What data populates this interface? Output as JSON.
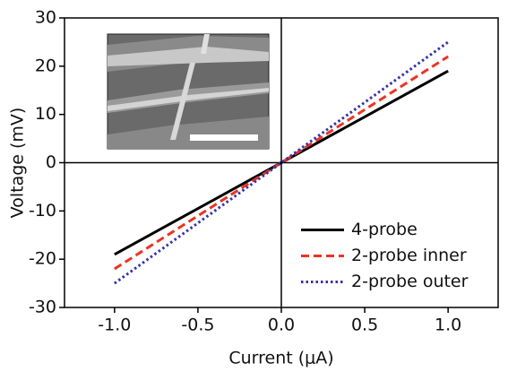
{
  "chart_data": {
    "type": "line",
    "x_label": "Current (μA)",
    "y_label": "Voltage (mV)",
    "x": [
      -1.0,
      0.0,
      1.0
    ],
    "series": [
      {
        "name": "4-probe",
        "color": "#000000",
        "style": "solid",
        "values": [
          -19,
          0,
          19
        ]
      },
      {
        "name": "2-probe inner",
        "color": "#ee3322",
        "style": "dashed",
        "values": [
          -22,
          0,
          22
        ]
      },
      {
        "name": "2-probe outer",
        "color": "#3333aa",
        "style": "dotted",
        "values": [
          -25,
          0,
          25
        ]
      }
    ],
    "xlim": [
      -1.3,
      1.3
    ],
    "xticks": [
      {
        "value": -1.0,
        "label": "-1.0"
      },
      {
        "value": -0.5,
        "label": "-0.5"
      },
      {
        "value": 0.0,
        "label": "0.0"
      },
      {
        "value": 0.5,
        "label": "0.5"
      },
      {
        "value": 1.0,
        "label": "1.0"
      }
    ],
    "ylim": [
      -30,
      30
    ],
    "yticks": [
      30,
      20,
      10,
      0,
      -10,
      -20,
      -30
    ],
    "zero_axes": true,
    "legend": "lower right"
  }
}
